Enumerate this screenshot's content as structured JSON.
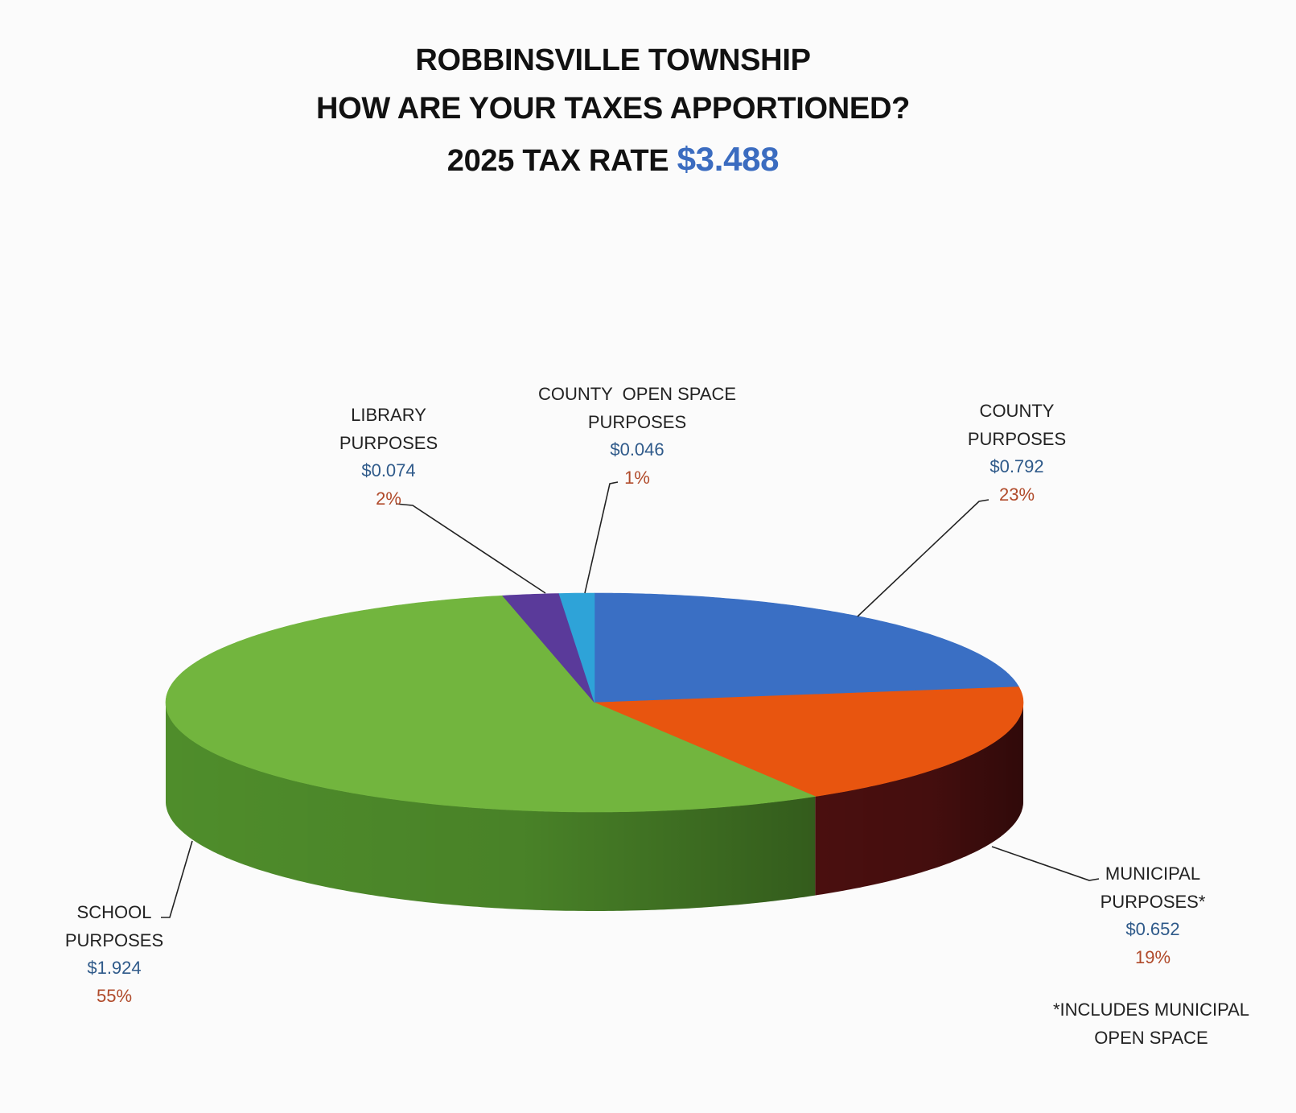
{
  "chart_data": {
    "type": "pie",
    "style": "3d",
    "title": [
      "ROBBINSVILLE TOWNSHIP",
      "HOW ARE YOUR TAXES APPORTIONED?"
    ],
    "subtitle_prefix": "2025 TAX RATE",
    "total_rate": "$3.488",
    "accent_color": "#3b6cc0",
    "slices": [
      {
        "label": [
          "COUNTY",
          "PURPOSES"
        ],
        "value": 0.792,
        "value_label": "$0.792",
        "percent": "23%",
        "color": "#3a6fc4",
        "side_color": "#24467d"
      },
      {
        "label": [
          "MUNICIPAL",
          "PURPOSES*"
        ],
        "value": 0.652,
        "value_label": "$0.652",
        "percent": "19%",
        "color": "#e8550f",
        "side_color": "#4a0f0f"
      },
      {
        "label": [
          "SCHOOL",
          "PURPOSES"
        ],
        "value": 1.924,
        "value_label": "$1.924",
        "percent": "55%",
        "color": "#72b53e",
        "side_color": "#4f8d2b"
      },
      {
        "label": [
          "LIBRARY",
          "PURPOSES"
        ],
        "value": 0.074,
        "value_label": "$0.074",
        "percent": "2%",
        "color": "#5a3a9a",
        "side_color": "#3a2466"
      },
      {
        "label": [
          "COUNTY  OPEN SPACE",
          "PURPOSES"
        ],
        "value": 0.046,
        "value_label": "$0.046",
        "percent": "1%",
        "color": "#2ea3d8",
        "side_color": "#1e6f93"
      }
    ],
    "footnote": [
      "*INCLUDES MUNICIPAL",
      "OPEN SPACE"
    ],
    "legend": "none"
  }
}
